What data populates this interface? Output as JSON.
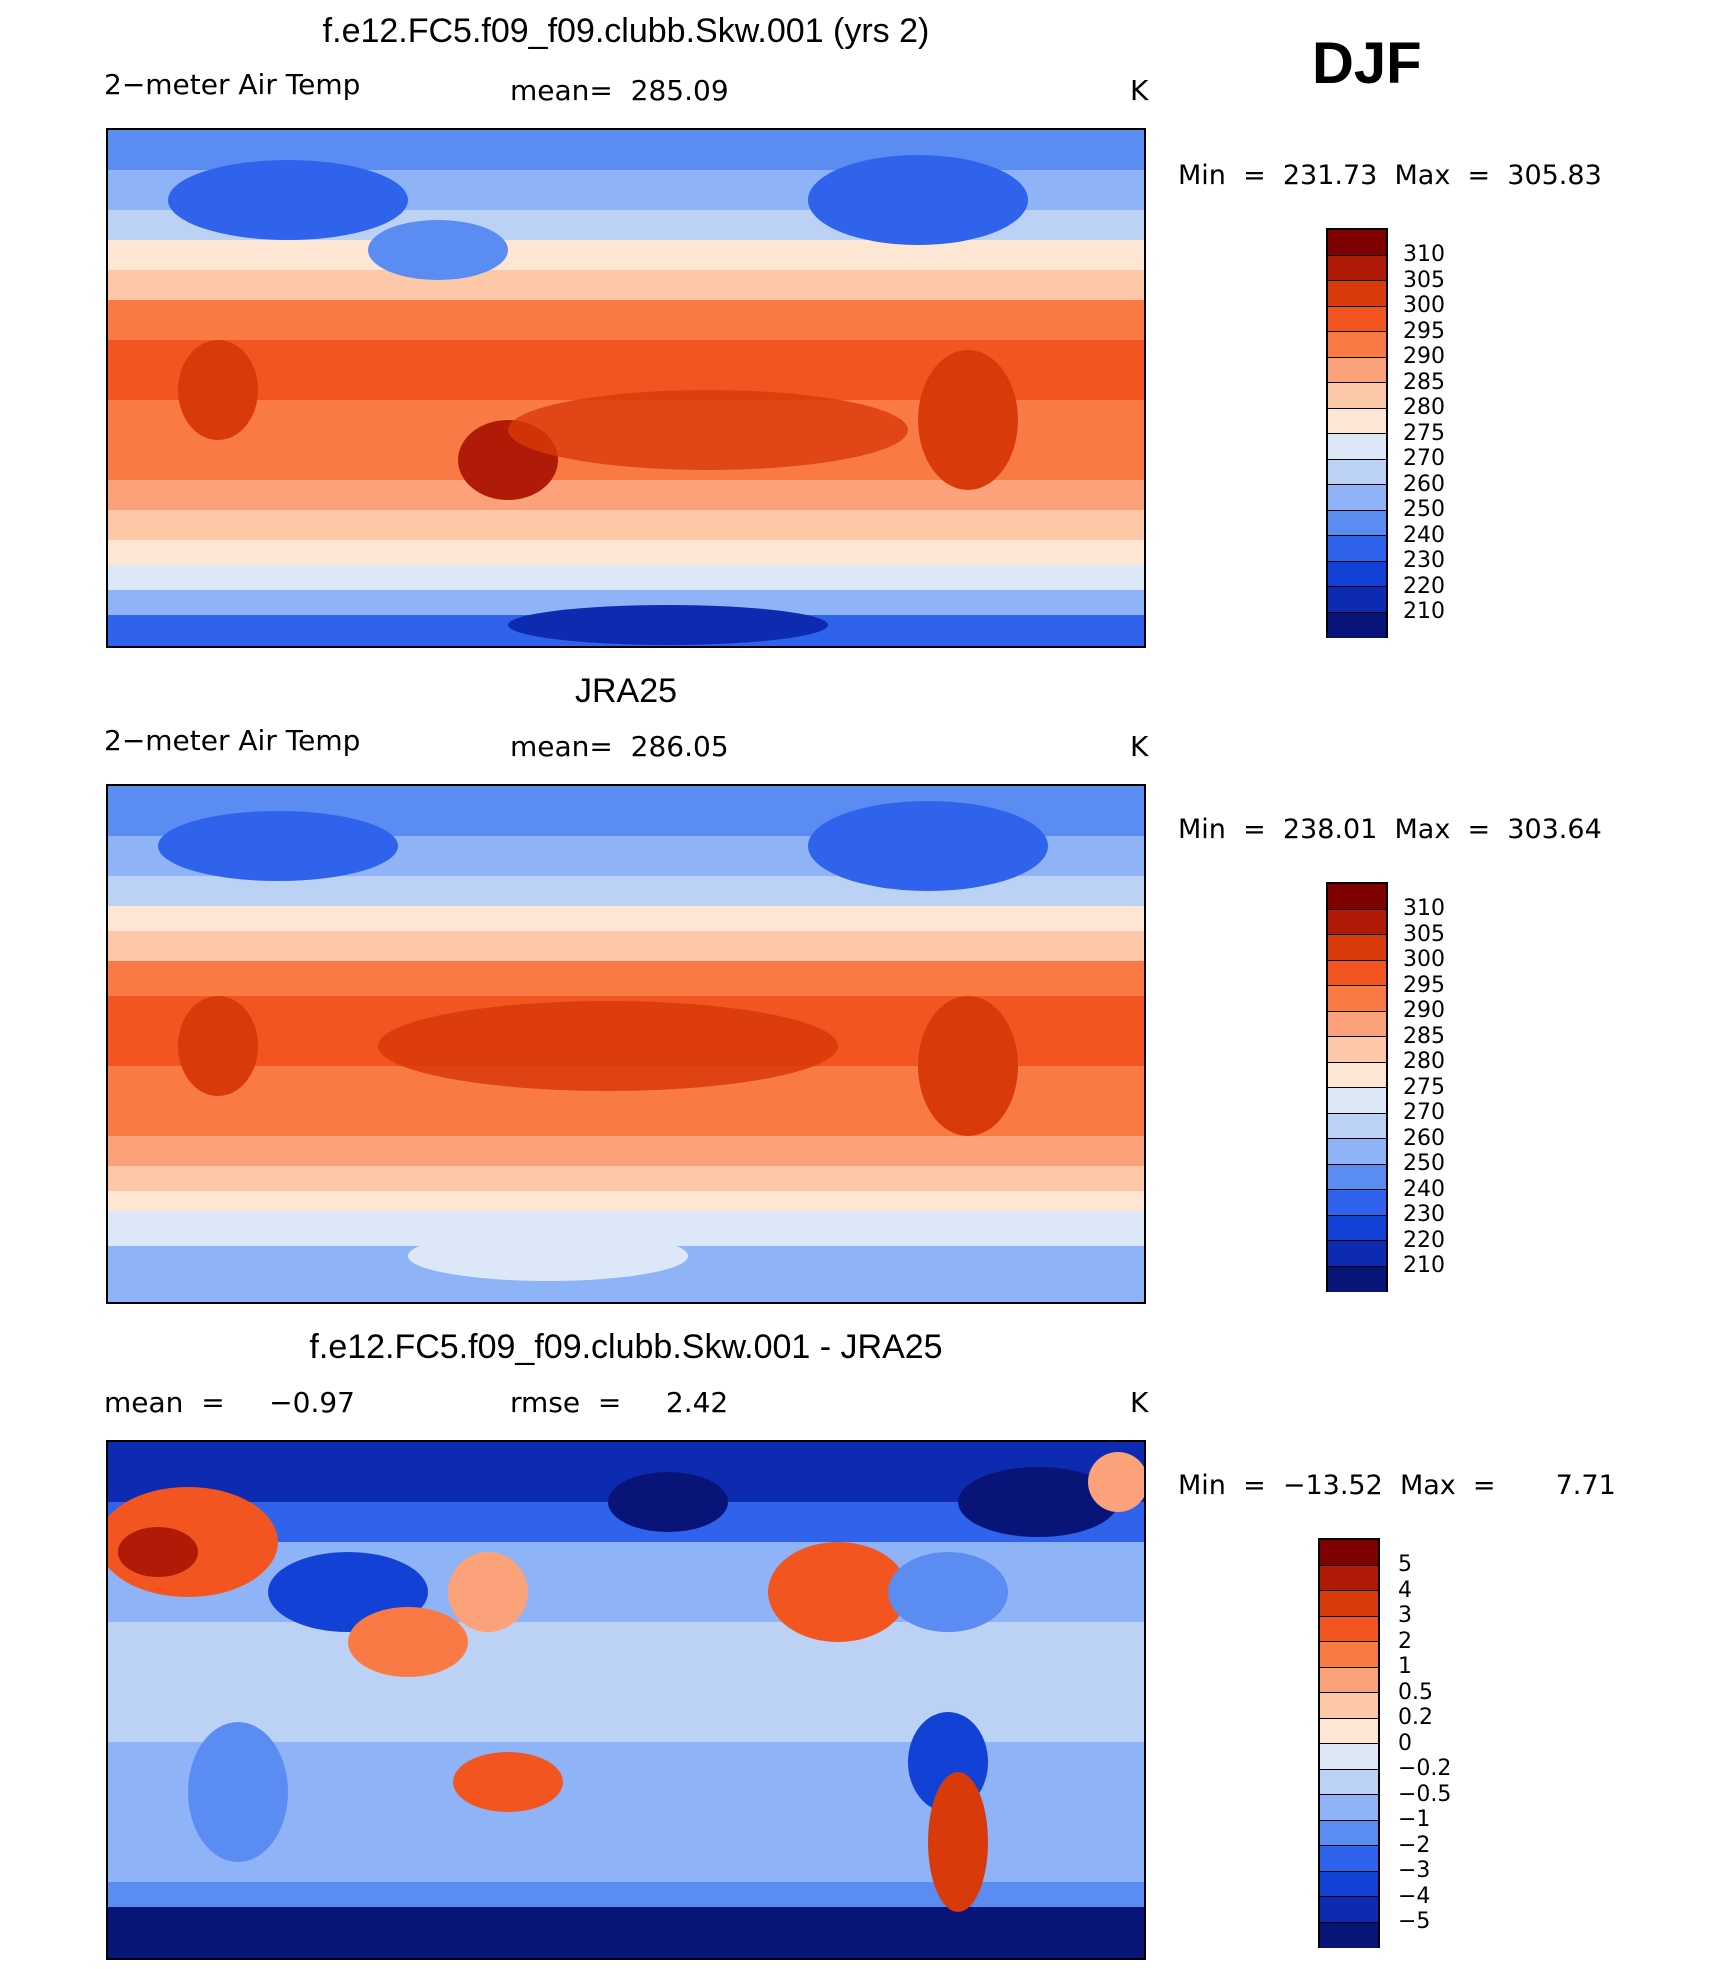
{
  "season": "DJF",
  "colors": {
    "abs_scale": [
      "#7f0000",
      "#b01b08",
      "#d93a0a",
      "#f25520",
      "#fa7a45",
      "#fba27b",
      "#fcc8a8",
      "#fde6d4",
      "#dce8f7",
      "#bcd2f5",
      "#8fb3f7",
      "#5a8cf2",
      "#2f63eb",
      "#1242d5",
      "#0d2bb0",
      "#081478"
    ],
    "diff_scale": [
      "#7f0000",
      "#b01b08",
      "#d93a0a",
      "#f25520",
      "#fa7a45",
      "#fba27b",
      "#fcc8a8",
      "#fde6d4",
      "#dce8f7",
      "#bcd2f5",
      "#8fb3f7",
      "#5a8cf2",
      "#2f63eb",
      "#1242d5",
      "#0d2bb0",
      "#081478"
    ]
  },
  "panels": [
    {
      "title": "f.e12.FC5.f09_f09.clubb.Skw.001 (yrs 2)",
      "left_label": "2−meter Air Temp",
      "center_label": "mean=  285.09",
      "units": "K",
      "minmax": "Min  =  231.73  Max  =  305.83",
      "levels": [
        "310",
        "305",
        "300",
        "295",
        "290",
        "285",
        "280",
        "275",
        "270",
        "260",
        "250",
        "240",
        "230",
        "220",
        "210"
      ]
    },
    {
      "title": "JRA25",
      "left_label": "2−meter Air Temp",
      "center_label": "mean=  286.05",
      "units": "K",
      "minmax": "Min  =  238.01  Max  =  303.64",
      "levels": [
        "310",
        "305",
        "300",
        "295",
        "290",
        "285",
        "280",
        "275",
        "270",
        "260",
        "250",
        "240",
        "230",
        "220",
        "210"
      ]
    },
    {
      "title": "f.e12.FC5.f09_f09.clubb.Skw.001 - JRA25",
      "left_label": "mean  =     −0.97",
      "center_label": "rmse  =     2.42",
      "units": "K",
      "minmax": "Min  =  −13.52  Max  =       7.71",
      "levels": [
        "5",
        "4",
        "3",
        "2",
        "1",
        "0.5",
        "0.2",
        "0",
        "−0.2",
        "−0.5",
        "−1",
        "−2",
        "−3",
        "−4",
        "−5"
      ]
    }
  ]
}
